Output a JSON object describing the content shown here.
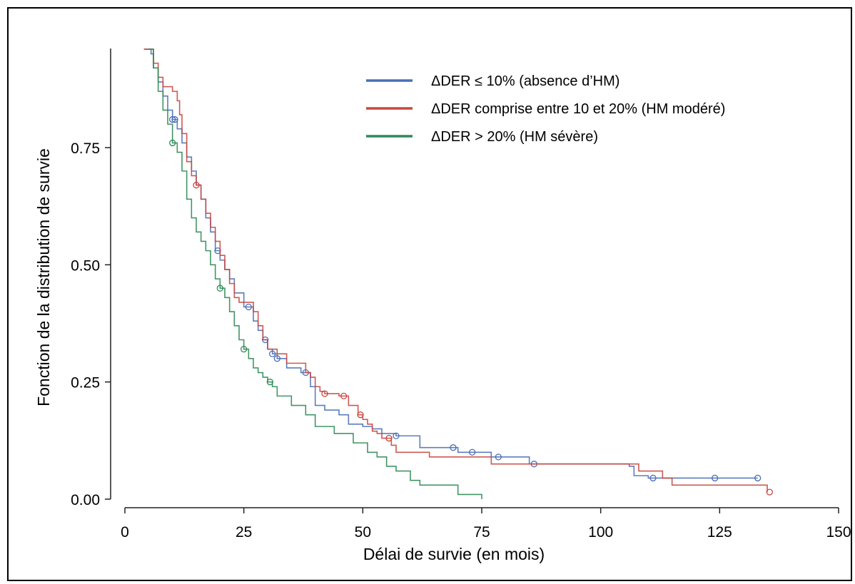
{
  "chart_data": {
    "type": "line",
    "xlabel": "Délai de survie (en mois)",
    "ylabel": "Fonction de la distribution de survie",
    "xlim": [
      0,
      150
    ],
    "ylim": [
      0,
      0.95
    ],
    "x_ticks": [
      "0",
      "25",
      "50",
      "75",
      "100",
      "125",
      "150"
    ],
    "y_ticks": [
      "0.00",
      "0.25",
      "0.50",
      "0.75"
    ],
    "x_tick_values": [
      0,
      25,
      50,
      75,
      100,
      125,
      150
    ],
    "y_tick_values": [
      0,
      0.25,
      0.5,
      0.75
    ],
    "grid": false,
    "legend_position": "top-right",
    "series": [
      {
        "name": "ΔDER ≤ 10% (absence d’HM)",
        "color": "#4a6fb5",
        "points": [
          [
            4,
            0.96
          ],
          [
            5.5,
            0.95
          ],
          [
            6,
            0.92
          ],
          [
            7,
            0.89
          ],
          [
            8,
            0.86
          ],
          [
            9,
            0.83
          ],
          [
            10,
            0.81
          ],
          [
            11,
            0.79
          ],
          [
            12,
            0.76
          ],
          [
            13,
            0.73
          ],
          [
            14,
            0.7
          ],
          [
            15,
            0.67
          ],
          [
            16,
            0.64
          ],
          [
            17,
            0.6
          ],
          [
            18,
            0.57
          ],
          [
            19,
            0.53
          ],
          [
            20,
            0.51
          ],
          [
            21,
            0.49
          ],
          [
            22,
            0.47
          ],
          [
            23,
            0.44
          ],
          [
            25,
            0.41
          ],
          [
            27,
            0.38
          ],
          [
            28,
            0.36
          ],
          [
            29,
            0.34
          ],
          [
            30,
            0.32
          ],
          [
            31,
            0.31
          ],
          [
            32,
            0.3
          ],
          [
            34,
            0.28
          ],
          [
            37,
            0.27
          ],
          [
            39,
            0.24
          ],
          [
            40,
            0.2
          ],
          [
            42,
            0.19
          ],
          [
            45,
            0.18
          ],
          [
            47,
            0.16
          ],
          [
            50,
            0.155
          ],
          [
            52,
            0.15
          ],
          [
            54,
            0.14
          ],
          [
            57,
            0.135
          ],
          [
            62,
            0.11
          ],
          [
            70,
            0.1
          ],
          [
            77,
            0.09
          ],
          [
            85,
            0.075
          ],
          [
            100,
            0.075
          ],
          [
            106,
            0.07
          ],
          [
            107,
            0.05
          ],
          [
            110,
            0.045
          ],
          [
            124,
            0.045
          ],
          [
            133,
            0.045
          ]
        ],
        "censor_x": [
          10,
          10.5,
          19.5,
          26,
          29.5,
          31,
          32,
          38,
          57,
          69,
          73,
          78.5,
          86,
          111,
          124,
          133
        ]
      },
      {
        "name": "ΔDER comprise entre 10 et 20% (HM modéré)",
        "color": "#c8473f",
        "points": [
          [
            4,
            0.96
          ],
          [
            6,
            0.93
          ],
          [
            7,
            0.9
          ],
          [
            8,
            0.88
          ],
          [
            10,
            0.87
          ],
          [
            11,
            0.85
          ],
          [
            11.5,
            0.82
          ],
          [
            12,
            0.78
          ],
          [
            13,
            0.72
          ],
          [
            14,
            0.69
          ],
          [
            15,
            0.67
          ],
          [
            16,
            0.64
          ],
          [
            17,
            0.61
          ],
          [
            18,
            0.58
          ],
          [
            19,
            0.55
          ],
          [
            20,
            0.52
          ],
          [
            21,
            0.49
          ],
          [
            22,
            0.46
          ],
          [
            23,
            0.43
          ],
          [
            24,
            0.42
          ],
          [
            26,
            0.42
          ],
          [
            27,
            0.4
          ],
          [
            28,
            0.37
          ],
          [
            29,
            0.34
          ],
          [
            30,
            0.32
          ],
          [
            32,
            0.31
          ],
          [
            34,
            0.29
          ],
          [
            38,
            0.27
          ],
          [
            39,
            0.26
          ],
          [
            40,
            0.24
          ],
          [
            41,
            0.23
          ],
          [
            42,
            0.225
          ],
          [
            45,
            0.22
          ],
          [
            47,
            0.2
          ],
          [
            49,
            0.18
          ],
          [
            50,
            0.17
          ],
          [
            51,
            0.16
          ],
          [
            52,
            0.145
          ],
          [
            53,
            0.14
          ],
          [
            54,
            0.13
          ],
          [
            56,
            0.115
          ],
          [
            57,
            0.1
          ],
          [
            64,
            0.09
          ],
          [
            77,
            0.075
          ],
          [
            104,
            0.075
          ],
          [
            108,
            0.06
          ],
          [
            113,
            0.045
          ],
          [
            115,
            0.03
          ],
          [
            135,
            0.015
          ]
        ],
        "censor_x": [
          15,
          42,
          46,
          49.5,
          55.5,
          135.5
        ]
      },
      {
        "name": "ΔDER > 20% (HM sévère)",
        "color": "#2e8b57",
        "points": [
          [
            5,
            0.96
          ],
          [
            6,
            0.92
          ],
          [
            7,
            0.87
          ],
          [
            8,
            0.83
          ],
          [
            9,
            0.8
          ],
          [
            10,
            0.76
          ],
          [
            11,
            0.74
          ],
          [
            12,
            0.7
          ],
          [
            13,
            0.64
          ],
          [
            14,
            0.6
          ],
          [
            15,
            0.57
          ],
          [
            16,
            0.55
          ],
          [
            17,
            0.53
          ],
          [
            18,
            0.5
          ],
          [
            19,
            0.47
          ],
          [
            20,
            0.45
          ],
          [
            21,
            0.43
          ],
          [
            22,
            0.4
          ],
          [
            23,
            0.37
          ],
          [
            24,
            0.34
          ],
          [
            25,
            0.32
          ],
          [
            26,
            0.3
          ],
          [
            27,
            0.28
          ],
          [
            28,
            0.27
          ],
          [
            29,
            0.26
          ],
          [
            30,
            0.25
          ],
          [
            31,
            0.24
          ],
          [
            32,
            0.22
          ],
          [
            35,
            0.2
          ],
          [
            38,
            0.18
          ],
          [
            40,
            0.155
          ],
          [
            44,
            0.14
          ],
          [
            48,
            0.12
          ],
          [
            51,
            0.1
          ],
          [
            53,
            0.09
          ],
          [
            55,
            0.07
          ],
          [
            57,
            0.06
          ],
          [
            60,
            0.04
          ],
          [
            62,
            0.03
          ],
          [
            70,
            0.01
          ],
          [
            75,
            0.0
          ]
        ],
        "censor_x": [
          10,
          20,
          25,
          30.5
        ]
      }
    ]
  }
}
